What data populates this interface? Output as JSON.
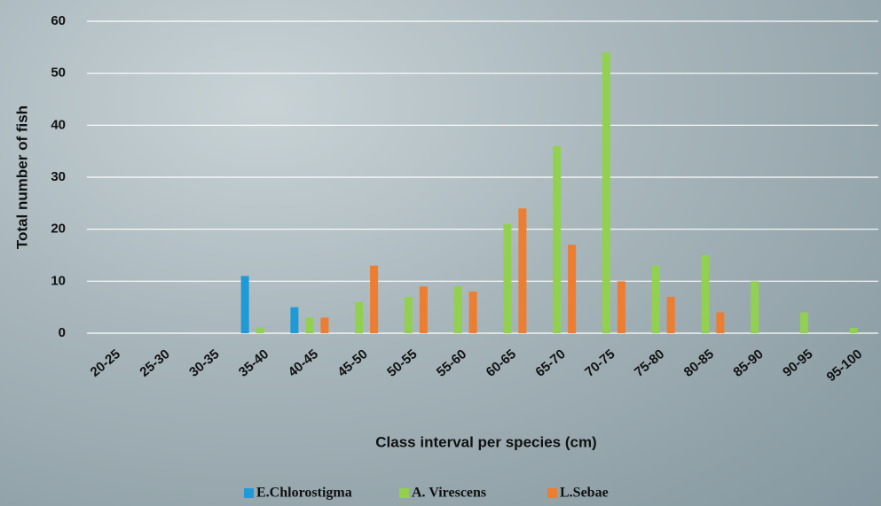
{
  "chart_data": {
    "type": "bar",
    "x_label": "Class interval per species (cm)",
    "y_label": "Total number of fish",
    "categories": [
      "20-25",
      "25-30",
      "30-35",
      "35-40",
      "40-45",
      "45-50",
      "50-55",
      "55-60",
      "60-65",
      "65-70",
      "70-75",
      "75-80",
      "80-85",
      "85-90",
      "90-95",
      "95-100"
    ],
    "series": [
      {
        "name": "E.Chlorostigma",
        "color": "#1f9ad6",
        "values": [
          0,
          0,
          0,
          11,
          5,
          0,
          0,
          0,
          0,
          0,
          0,
          0,
          0,
          0,
          0,
          0
        ]
      },
      {
        "name": "A. Virescens",
        "color": "#92d050",
        "values": [
          0,
          0,
          0,
          1,
          3,
          6,
          7,
          9,
          21,
          36,
          54,
          13,
          15,
          10,
          4,
          1
        ]
      },
      {
        "name": "L.Sebae",
        "color": "#ed7d31",
        "values": [
          0,
          0,
          0,
          0,
          3,
          13,
          9,
          8,
          24,
          17,
          10,
          7,
          4,
          0,
          0,
          0
        ]
      }
    ],
    "ylim": [
      0,
      60
    ],
    "yticks": [
      0,
      10,
      20,
      30,
      40,
      50,
      60
    ],
    "grid": true,
    "legend": "bottom"
  }
}
